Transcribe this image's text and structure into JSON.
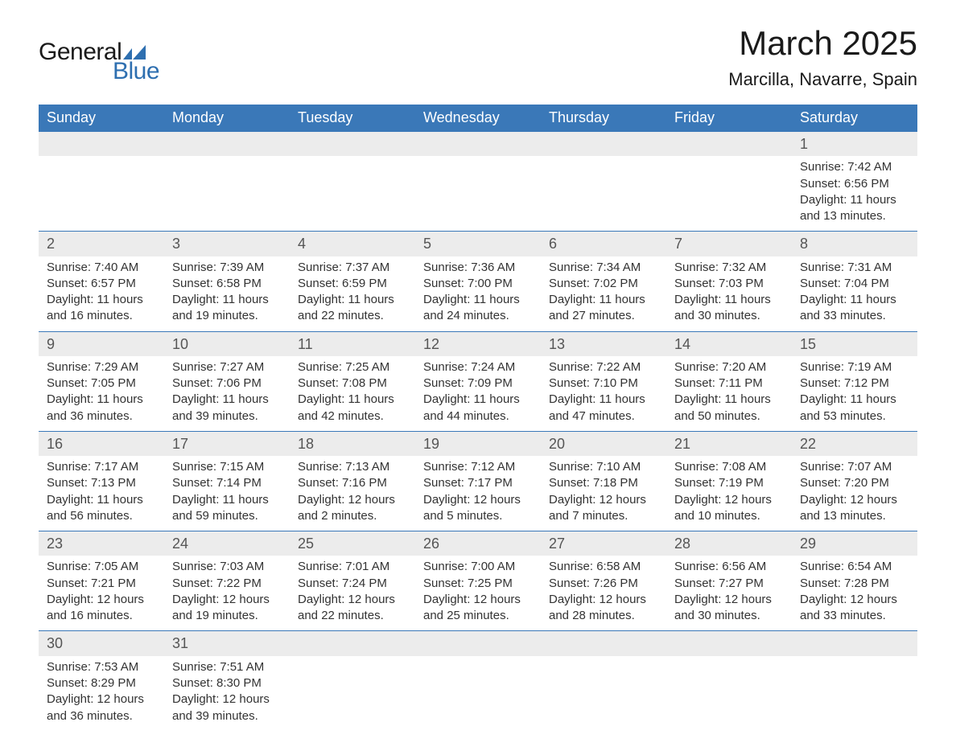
{
  "logo": {
    "text_main": "General",
    "text_sub": "Blue",
    "mark_color": "#2e6fb0"
  },
  "header": {
    "month_title": "March 2025",
    "location": "Marcilla, Navarre, Spain"
  },
  "colors": {
    "header_bg": "#3a78b8",
    "header_text": "#ffffff",
    "daynum_bg": "#ececec",
    "daynum_text": "#555555",
    "body_text": "#333333",
    "row_divider": "#3a78b8",
    "logo_blue": "#2e6fb0"
  },
  "typography": {
    "title_fontsize": 42,
    "location_fontsize": 22,
    "weekday_fontsize": 18,
    "daynum_fontsize": 18,
    "cell_fontsize": 15
  },
  "calendar": {
    "weekdays": [
      "Sunday",
      "Monday",
      "Tuesday",
      "Wednesday",
      "Thursday",
      "Friday",
      "Saturday"
    ],
    "weeks": [
      [
        null,
        null,
        null,
        null,
        null,
        null,
        {
          "day": "1",
          "sunrise": "Sunrise: 7:42 AM",
          "sunset": "Sunset: 6:56 PM",
          "daylight1": "Daylight: 11 hours",
          "daylight2": "and 13 minutes."
        }
      ],
      [
        {
          "day": "2",
          "sunrise": "Sunrise: 7:40 AM",
          "sunset": "Sunset: 6:57 PM",
          "daylight1": "Daylight: 11 hours",
          "daylight2": "and 16 minutes."
        },
        {
          "day": "3",
          "sunrise": "Sunrise: 7:39 AM",
          "sunset": "Sunset: 6:58 PM",
          "daylight1": "Daylight: 11 hours",
          "daylight2": "and 19 minutes."
        },
        {
          "day": "4",
          "sunrise": "Sunrise: 7:37 AM",
          "sunset": "Sunset: 6:59 PM",
          "daylight1": "Daylight: 11 hours",
          "daylight2": "and 22 minutes."
        },
        {
          "day": "5",
          "sunrise": "Sunrise: 7:36 AM",
          "sunset": "Sunset: 7:00 PM",
          "daylight1": "Daylight: 11 hours",
          "daylight2": "and 24 minutes."
        },
        {
          "day": "6",
          "sunrise": "Sunrise: 7:34 AM",
          "sunset": "Sunset: 7:02 PM",
          "daylight1": "Daylight: 11 hours",
          "daylight2": "and 27 minutes."
        },
        {
          "day": "7",
          "sunrise": "Sunrise: 7:32 AM",
          "sunset": "Sunset: 7:03 PM",
          "daylight1": "Daylight: 11 hours",
          "daylight2": "and 30 minutes."
        },
        {
          "day": "8",
          "sunrise": "Sunrise: 7:31 AM",
          "sunset": "Sunset: 7:04 PM",
          "daylight1": "Daylight: 11 hours",
          "daylight2": "and 33 minutes."
        }
      ],
      [
        {
          "day": "9",
          "sunrise": "Sunrise: 7:29 AM",
          "sunset": "Sunset: 7:05 PM",
          "daylight1": "Daylight: 11 hours",
          "daylight2": "and 36 minutes."
        },
        {
          "day": "10",
          "sunrise": "Sunrise: 7:27 AM",
          "sunset": "Sunset: 7:06 PM",
          "daylight1": "Daylight: 11 hours",
          "daylight2": "and 39 minutes."
        },
        {
          "day": "11",
          "sunrise": "Sunrise: 7:25 AM",
          "sunset": "Sunset: 7:08 PM",
          "daylight1": "Daylight: 11 hours",
          "daylight2": "and 42 minutes."
        },
        {
          "day": "12",
          "sunrise": "Sunrise: 7:24 AM",
          "sunset": "Sunset: 7:09 PM",
          "daylight1": "Daylight: 11 hours",
          "daylight2": "and 44 minutes."
        },
        {
          "day": "13",
          "sunrise": "Sunrise: 7:22 AM",
          "sunset": "Sunset: 7:10 PM",
          "daylight1": "Daylight: 11 hours",
          "daylight2": "and 47 minutes."
        },
        {
          "day": "14",
          "sunrise": "Sunrise: 7:20 AM",
          "sunset": "Sunset: 7:11 PM",
          "daylight1": "Daylight: 11 hours",
          "daylight2": "and 50 minutes."
        },
        {
          "day": "15",
          "sunrise": "Sunrise: 7:19 AM",
          "sunset": "Sunset: 7:12 PM",
          "daylight1": "Daylight: 11 hours",
          "daylight2": "and 53 minutes."
        }
      ],
      [
        {
          "day": "16",
          "sunrise": "Sunrise: 7:17 AM",
          "sunset": "Sunset: 7:13 PM",
          "daylight1": "Daylight: 11 hours",
          "daylight2": "and 56 minutes."
        },
        {
          "day": "17",
          "sunrise": "Sunrise: 7:15 AM",
          "sunset": "Sunset: 7:14 PM",
          "daylight1": "Daylight: 11 hours",
          "daylight2": "and 59 minutes."
        },
        {
          "day": "18",
          "sunrise": "Sunrise: 7:13 AM",
          "sunset": "Sunset: 7:16 PM",
          "daylight1": "Daylight: 12 hours",
          "daylight2": "and 2 minutes."
        },
        {
          "day": "19",
          "sunrise": "Sunrise: 7:12 AM",
          "sunset": "Sunset: 7:17 PM",
          "daylight1": "Daylight: 12 hours",
          "daylight2": "and 5 minutes."
        },
        {
          "day": "20",
          "sunrise": "Sunrise: 7:10 AM",
          "sunset": "Sunset: 7:18 PM",
          "daylight1": "Daylight: 12 hours",
          "daylight2": "and 7 minutes."
        },
        {
          "day": "21",
          "sunrise": "Sunrise: 7:08 AM",
          "sunset": "Sunset: 7:19 PM",
          "daylight1": "Daylight: 12 hours",
          "daylight2": "and 10 minutes."
        },
        {
          "day": "22",
          "sunrise": "Sunrise: 7:07 AM",
          "sunset": "Sunset: 7:20 PM",
          "daylight1": "Daylight: 12 hours",
          "daylight2": "and 13 minutes."
        }
      ],
      [
        {
          "day": "23",
          "sunrise": "Sunrise: 7:05 AM",
          "sunset": "Sunset: 7:21 PM",
          "daylight1": "Daylight: 12 hours",
          "daylight2": "and 16 minutes."
        },
        {
          "day": "24",
          "sunrise": "Sunrise: 7:03 AM",
          "sunset": "Sunset: 7:22 PM",
          "daylight1": "Daylight: 12 hours",
          "daylight2": "and 19 minutes."
        },
        {
          "day": "25",
          "sunrise": "Sunrise: 7:01 AM",
          "sunset": "Sunset: 7:24 PM",
          "daylight1": "Daylight: 12 hours",
          "daylight2": "and 22 minutes."
        },
        {
          "day": "26",
          "sunrise": "Sunrise: 7:00 AM",
          "sunset": "Sunset: 7:25 PM",
          "daylight1": "Daylight: 12 hours",
          "daylight2": "and 25 minutes."
        },
        {
          "day": "27",
          "sunrise": "Sunrise: 6:58 AM",
          "sunset": "Sunset: 7:26 PM",
          "daylight1": "Daylight: 12 hours",
          "daylight2": "and 28 minutes."
        },
        {
          "day": "28",
          "sunrise": "Sunrise: 6:56 AM",
          "sunset": "Sunset: 7:27 PM",
          "daylight1": "Daylight: 12 hours",
          "daylight2": "and 30 minutes."
        },
        {
          "day": "29",
          "sunrise": "Sunrise: 6:54 AM",
          "sunset": "Sunset: 7:28 PM",
          "daylight1": "Daylight: 12 hours",
          "daylight2": "and 33 minutes."
        }
      ],
      [
        {
          "day": "30",
          "sunrise": "Sunrise: 7:53 AM",
          "sunset": "Sunset: 8:29 PM",
          "daylight1": "Daylight: 12 hours",
          "daylight2": "and 36 minutes."
        },
        {
          "day": "31",
          "sunrise": "Sunrise: 7:51 AM",
          "sunset": "Sunset: 8:30 PM",
          "daylight1": "Daylight: 12 hours",
          "daylight2": "and 39 minutes."
        },
        null,
        null,
        null,
        null,
        null
      ]
    ]
  }
}
